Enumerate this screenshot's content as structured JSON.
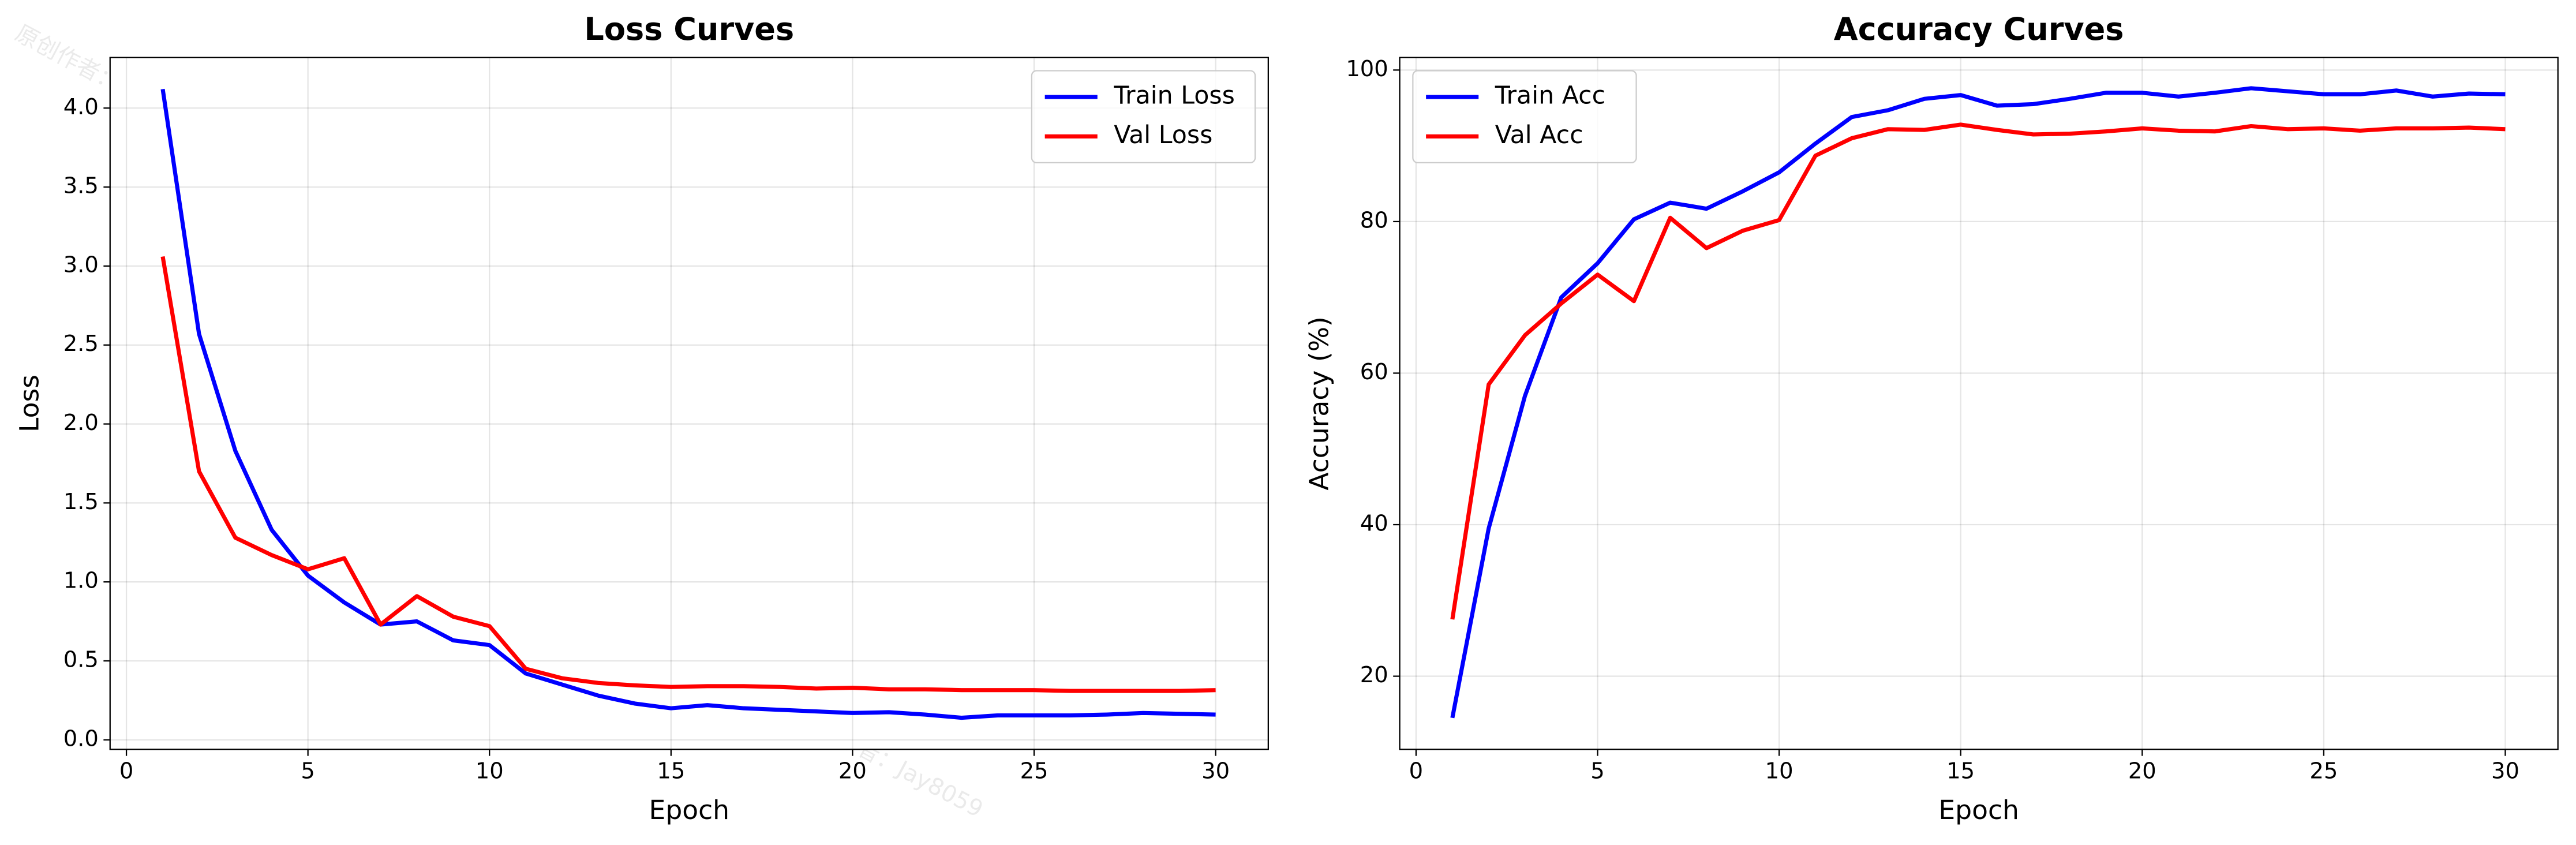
{
  "watermark": "原创作者：Jay8059",
  "chart_data": [
    {
      "type": "line",
      "title": "Loss Curves",
      "xlabel": "Epoch",
      "ylabel": "Loss",
      "x": [
        1,
        2,
        3,
        4,
        5,
        6,
        7,
        8,
        9,
        10,
        11,
        12,
        13,
        14,
        15,
        16,
        17,
        18,
        19,
        20,
        21,
        22,
        23,
        24,
        25,
        26,
        27,
        28,
        29,
        30
      ],
      "series": [
        {
          "name": "Train Loss",
          "color": "#0000ff",
          "values": [
            4.12,
            2.57,
            1.83,
            1.33,
            1.04,
            0.87,
            0.73,
            0.75,
            0.63,
            0.6,
            0.42,
            0.35,
            0.28,
            0.23,
            0.2,
            0.22,
            0.2,
            0.19,
            0.18,
            0.17,
            0.175,
            0.16,
            0.14,
            0.155,
            0.155,
            0.155,
            0.16,
            0.17,
            0.165,
            0.16
          ]
        },
        {
          "name": "Val Loss",
          "color": "#ff0000",
          "values": [
            3.06,
            1.7,
            1.28,
            1.17,
            1.08,
            1.15,
            0.73,
            0.91,
            0.78,
            0.72,
            0.45,
            0.39,
            0.36,
            0.345,
            0.335,
            0.34,
            0.34,
            0.335,
            0.325,
            0.33,
            0.32,
            0.32,
            0.315,
            0.315,
            0.315,
            0.31,
            0.31,
            0.31,
            0.31,
            0.315
          ]
        }
      ],
      "xlim": [
        -0.45,
        31.45
      ],
      "xticks": [
        0,
        5,
        10,
        15,
        20,
        25,
        30
      ],
      "ylim": [
        -0.06,
        4.32
      ],
      "yticks": [
        {
          "value": 0,
          "label": "0.0"
        },
        {
          "value": 0.5,
          "label": "0.5"
        },
        {
          "value": 1,
          "label": "1.0"
        },
        {
          "value": 1.5,
          "label": "1.5"
        },
        {
          "value": 2,
          "label": "2.0"
        },
        {
          "value": 2.5,
          "label": "2.5"
        },
        {
          "value": 3,
          "label": "3.0"
        },
        {
          "value": 3.5,
          "label": "3.5"
        },
        {
          "value": 4,
          "label": "4.0"
        }
      ],
      "grid": true,
      "legend": "upper right"
    },
    {
      "type": "line",
      "title": "Accuracy Curves",
      "xlabel": "Epoch",
      "ylabel": "Accuracy (%)",
      "x": [
        1,
        2,
        3,
        4,
        5,
        6,
        7,
        8,
        9,
        10,
        11,
        12,
        13,
        14,
        15,
        16,
        17,
        18,
        19,
        20,
        21,
        22,
        23,
        24,
        25,
        26,
        27,
        28,
        29,
        30
      ],
      "series": [
        {
          "name": "Train Acc",
          "color": "#0000ff",
          "values": [
            14.5,
            39.5,
            57,
            70,
            74.5,
            80.3,
            82.5,
            81.7,
            84,
            86.5,
            90.3,
            93.8,
            94.7,
            96.2,
            96.7,
            95.3,
            95.5,
            96.2,
            97,
            97,
            96.5,
            97,
            97.6,
            97.2,
            96.8,
            96.8,
            97.3,
            96.5,
            96.9,
            96.8
          ]
        },
        {
          "name": "Val Acc",
          "color": "#ff0000",
          "values": [
            27.5,
            58.5,
            65,
            69.2,
            73,
            69.5,
            80.5,
            76.5,
            78.8,
            80.2,
            88.7,
            91,
            92.2,
            92.1,
            92.8,
            92.1,
            91.5,
            91.6,
            91.9,
            92.3,
            92,
            91.9,
            92.6,
            92.2,
            92.3,
            92,
            92.3,
            92.3,
            92.4,
            92.2
          ]
        }
      ],
      "xlim": [
        -0.45,
        31.45
      ],
      "xticks": [
        0,
        5,
        10,
        15,
        20,
        25,
        30
      ],
      "ylim": [
        10.35,
        101.65
      ],
      "yticks": [
        20,
        40,
        60,
        80,
        100
      ],
      "grid": true,
      "legend": "upper left"
    }
  ]
}
